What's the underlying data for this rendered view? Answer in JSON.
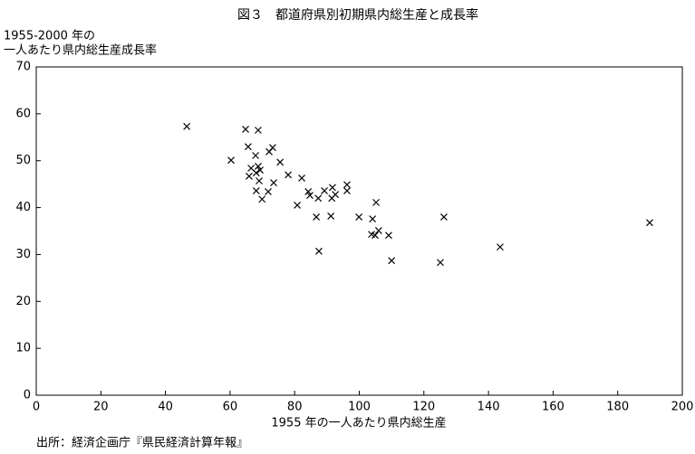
{
  "chart_data": {
    "type": "scatter",
    "title": "図３　都道府県別初期県内総生産と成長率",
    "ylabel": [
      "1955-2000 年の",
      "一人あたり県内総生産成長率"
    ],
    "xlabel": "1955 年の一人あたり県内総生産",
    "source": "出所：経済企画庁『県民経済計算年報』",
    "color": "#000000",
    "x": [
      46.6,
      60.3,
      64.8,
      68.7,
      65.6,
      66.5,
      65.9,
      67.9,
      68.7,
      68.1,
      69.3,
      69.0,
      68.1,
      69.9,
      71.8,
      72.1,
      73.2,
      73.5,
      75.5,
      78.0,
      82.2,
      80.8,
      84.2,
      84.7,
      86.7,
      87.3,
      89.2,
      91.5,
      91.7,
      92.6,
      96.2,
      96.2,
      99.9,
      91.2,
      87.5,
      104.1,
      105.2,
      103.8,
      104.9,
      106.0,
      109.1,
      110.0,
      125.1,
      126.2,
      143.6,
      189.9
    ],
    "values": [
      57.3,
      50.1,
      56.7,
      56.5,
      53.0,
      48.4,
      46.7,
      51.1,
      48.8,
      47.4,
      48.0,
      45.7,
      43.6,
      41.8,
      43.4,
      51.9,
      52.8,
      45.3,
      49.7,
      47.0,
      46.3,
      40.5,
      43.4,
      42.6,
      38.0,
      42.0,
      43.6,
      42.0,
      44.3,
      42.8,
      43.6,
      44.9,
      38.0,
      38.2,
      30.7,
      37.6,
      41.1,
      34.3,
      34.1,
      35.1,
      34.1,
      28.7,
      28.3,
      38.0,
      31.6,
      36.8
    ],
    "xlim": [
      0,
      200
    ],
    "xticks": [
      0,
      20,
      40,
      60,
      80,
      100,
      120,
      140,
      160,
      180,
      200
    ],
    "ylim": [
      0,
      70
    ],
    "yticks": [
      0,
      10,
      20,
      30,
      40,
      50,
      60,
      70
    ]
  }
}
